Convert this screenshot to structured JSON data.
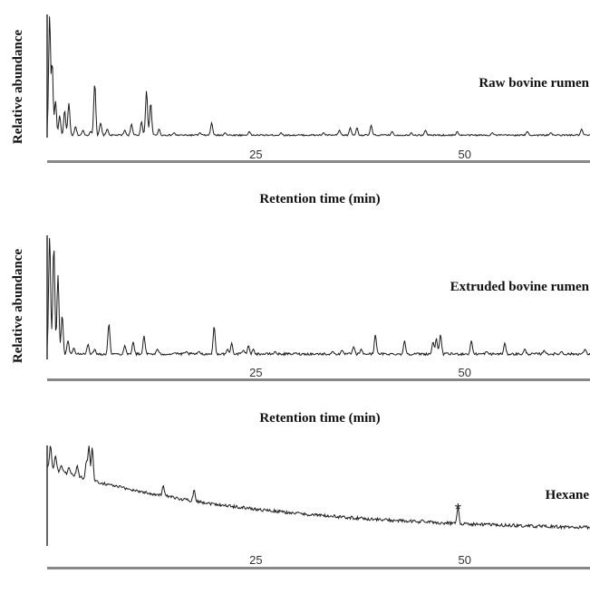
{
  "chart_data": [
    {
      "type": "line",
      "ylabel": "Relative abundance",
      "xlabel": "Retention time (min)",
      "sample_label": "Raw bovine rumen",
      "x_ticks": [
        25,
        50
      ],
      "xlim": [
        0,
        65
      ],
      "ylim": [
        0,
        100
      ],
      "baseline": 2,
      "noise": 0.6,
      "peaks": [
        {
          "x": 0.3,
          "y": 100
        },
        {
          "x": 0.6,
          "y": 62
        },
        {
          "x": 1.0,
          "y": 30
        },
        {
          "x": 1.5,
          "y": 18
        },
        {
          "x": 2.1,
          "y": 22
        },
        {
          "x": 2.6,
          "y": 28
        },
        {
          "x": 3.4,
          "y": 9
        },
        {
          "x": 4.3,
          "y": 6
        },
        {
          "x": 5.2,
          "y": 5
        },
        {
          "x": 5.7,
          "y": 44
        },
        {
          "x": 6.4,
          "y": 12
        },
        {
          "x": 7.2,
          "y": 7
        },
        {
          "x": 9.3,
          "y": 6
        },
        {
          "x": 10.1,
          "y": 11
        },
        {
          "x": 11.3,
          "y": 13
        },
        {
          "x": 11.9,
          "y": 38
        },
        {
          "x": 12.4,
          "y": 28
        },
        {
          "x": 13.4,
          "y": 7
        },
        {
          "x": 15.2,
          "y": 4
        },
        {
          "x": 18.3,
          "y": 4
        },
        {
          "x": 19.7,
          "y": 12
        },
        {
          "x": 21.3,
          "y": 4
        },
        {
          "x": 24.2,
          "y": 5
        },
        {
          "x": 28.0,
          "y": 4
        },
        {
          "x": 33.1,
          "y": 4
        },
        {
          "x": 35.0,
          "y": 6
        },
        {
          "x": 36.3,
          "y": 8
        },
        {
          "x": 37.1,
          "y": 8
        },
        {
          "x": 38.8,
          "y": 10
        },
        {
          "x": 41.3,
          "y": 5
        },
        {
          "x": 43.6,
          "y": 4
        },
        {
          "x": 45.3,
          "y": 6
        },
        {
          "x": 49.1,
          "y": 5
        },
        {
          "x": 53.3,
          "y": 4
        },
        {
          "x": 57.5,
          "y": 5
        },
        {
          "x": 60.3,
          "y": 4
        },
        {
          "x": 64.0,
          "y": 7
        }
      ]
    },
    {
      "type": "line",
      "ylabel": "Relative abundance",
      "xlabel": "Retention time (min)",
      "sample_label": "Extruded bovine rumen",
      "x_ticks": [
        25,
        50
      ],
      "xlim": [
        0,
        65
      ],
      "ylim": [
        0,
        100
      ],
      "baseline": 3,
      "noise": 1.0,
      "peaks": [
        {
          "x": 0.3,
          "y": 100
        },
        {
          "x": 0.8,
          "y": 92
        },
        {
          "x": 1.3,
          "y": 68
        },
        {
          "x": 1.8,
          "y": 35
        },
        {
          "x": 2.5,
          "y": 14
        },
        {
          "x": 3.2,
          "y": 8
        },
        {
          "x": 4.9,
          "y": 11
        },
        {
          "x": 5.7,
          "y": 7
        },
        {
          "x": 7.4,
          "y": 28
        },
        {
          "x": 9.3,
          "y": 10
        },
        {
          "x": 10.3,
          "y": 13
        },
        {
          "x": 11.6,
          "y": 18
        },
        {
          "x": 13.2,
          "y": 7
        },
        {
          "x": 15.3,
          "y": 4
        },
        {
          "x": 16.7,
          "y": 5
        },
        {
          "x": 18.2,
          "y": 5
        },
        {
          "x": 20.0,
          "y": 26
        },
        {
          "x": 21.6,
          "y": 7
        },
        {
          "x": 22.1,
          "y": 12
        },
        {
          "x": 23.5,
          "y": 6
        },
        {
          "x": 24.1,
          "y": 10
        },
        {
          "x": 24.7,
          "y": 7
        },
        {
          "x": 27.3,
          "y": 5
        },
        {
          "x": 29.8,
          "y": 4
        },
        {
          "x": 34.2,
          "y": 5
        },
        {
          "x": 35.3,
          "y": 6
        },
        {
          "x": 36.7,
          "y": 9
        },
        {
          "x": 37.6,
          "y": 7
        },
        {
          "x": 39.3,
          "y": 19
        },
        {
          "x": 42.8,
          "y": 14
        },
        {
          "x": 46.2,
          "y": 13
        },
        {
          "x": 46.6,
          "y": 16
        },
        {
          "x": 47.1,
          "y": 19
        },
        {
          "x": 50.8,
          "y": 14
        },
        {
          "x": 52.6,
          "y": 5
        },
        {
          "x": 54.8,
          "y": 12
        },
        {
          "x": 57.2,
          "y": 7
        },
        {
          "x": 59.5,
          "y": 6
        },
        {
          "x": 61.6,
          "y": 5
        },
        {
          "x": 64.4,
          "y": 7
        }
      ]
    },
    {
      "type": "line",
      "ylabel": "",
      "xlabel": "",
      "sample_label": "Hexane",
      "marker_label": "*",
      "marker_x": 49.2,
      "x_ticks": [
        25,
        50
      ],
      "xlim": [
        0,
        65
      ],
      "ylim": [
        0,
        100
      ],
      "baseline_start": 78,
      "baseline_end": 14,
      "noise": 1.6,
      "peaks": [
        {
          "x": 0.4,
          "y": 100
        },
        {
          "x": 1.0,
          "y": 90
        },
        {
          "x": 1.7,
          "y": 80
        },
        {
          "x": 2.6,
          "y": 78
        },
        {
          "x": 3.6,
          "y": 80
        },
        {
          "x": 4.7,
          "y": 84
        },
        {
          "x": 5.0,
          "y": 100
        },
        {
          "x": 5.4,
          "y": 98
        },
        {
          "x": 13.9,
          "y": 60
        },
        {
          "x": 17.6,
          "y": 56
        },
        {
          "x": 44.9,
          "y": 26
        },
        {
          "x": 49.2,
          "y": 38
        },
        {
          "x": 53.0,
          "y": 20
        }
      ]
    }
  ]
}
